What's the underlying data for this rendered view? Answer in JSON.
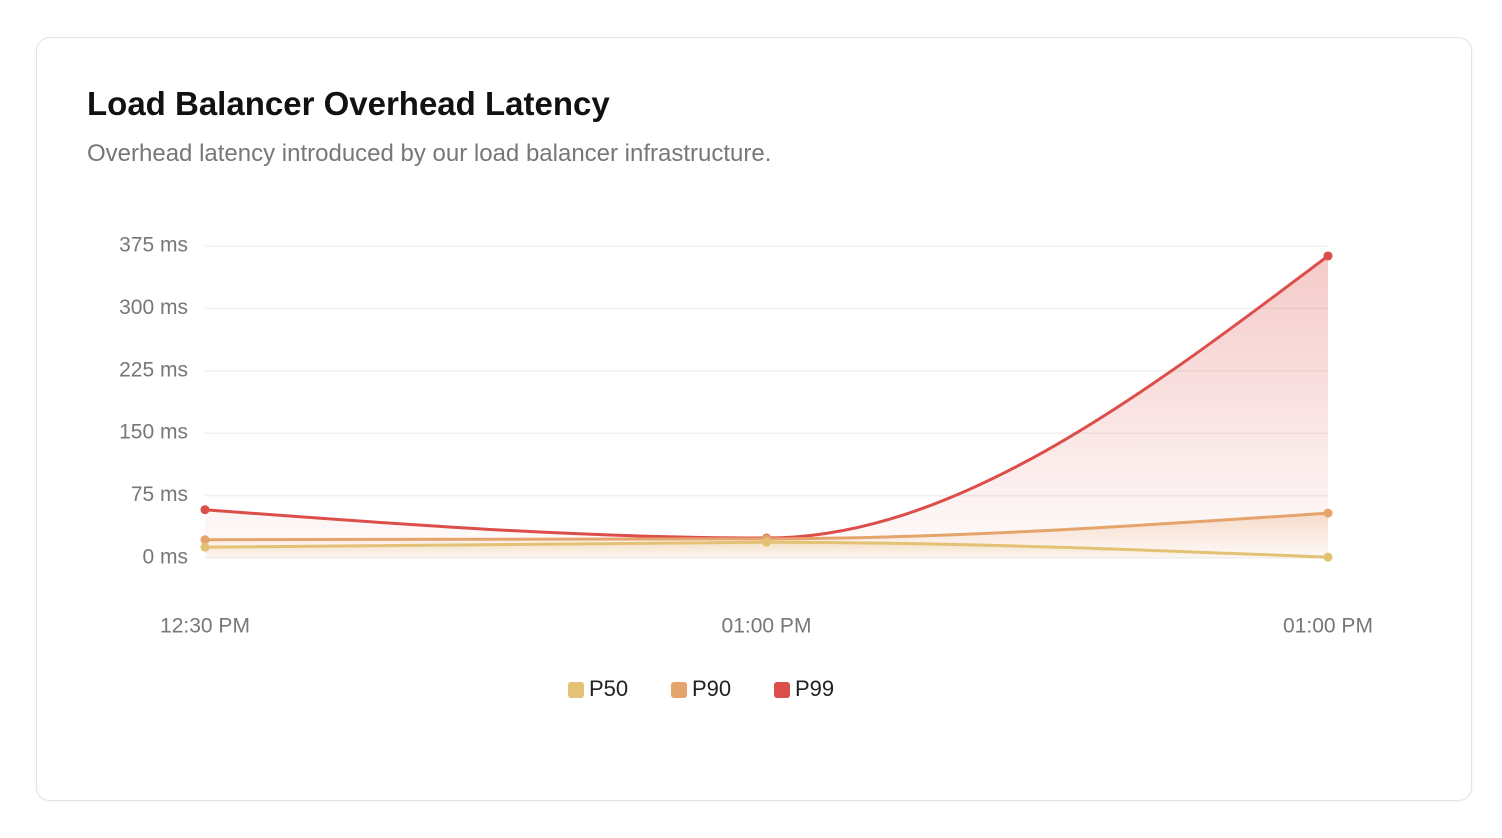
{
  "chart_data": {
    "type": "line",
    "title": "Load Balancer Overhead Latency",
    "subtitle": "Overhead latency introduced by our load balancer infrastructure.",
    "categories": [
      "12:30 PM",
      "01:00 PM",
      "01:00 PM"
    ],
    "series": [
      {
        "name": "P50",
        "color": "#e3c275",
        "values": [
          13,
          19,
          1
        ]
      },
      {
        "name": "P90",
        "color": "#e5a46c",
        "values": [
          22,
          23,
          54
        ]
      },
      {
        "name": "P99",
        "color": "#dc4e4a",
        "values": [
          58,
          24,
          363
        ]
      }
    ],
    "ylim": [
      0,
      375
    ],
    "yticks": [
      {
        "value": 0,
        "label": "0 ms"
      },
      {
        "value": 75,
        "label": "75 ms"
      },
      {
        "value": 150,
        "label": "150 ms"
      },
      {
        "value": 225,
        "label": "225 ms"
      },
      {
        "value": 300,
        "label": "300 ms"
      },
      {
        "value": 375,
        "label": "375 ms"
      }
    ],
    "grid": true,
    "legend": "bottom"
  }
}
